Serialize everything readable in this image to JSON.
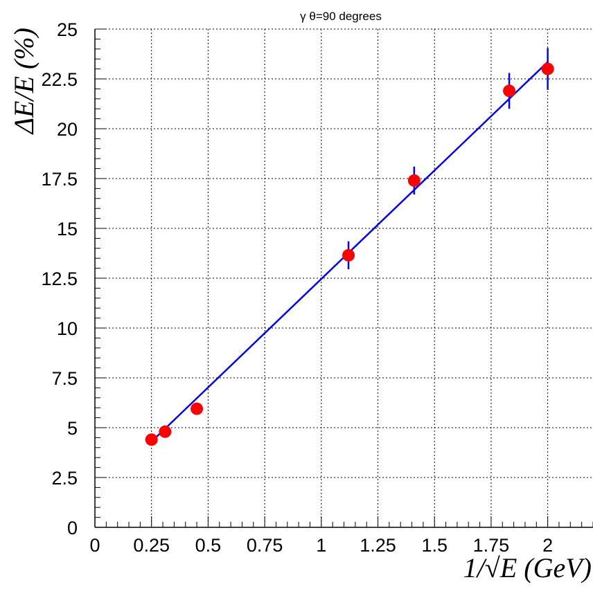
{
  "chart_data": {
    "type": "scatter",
    "title": "γ   θ=90 degrees",
    "xlabel": "1/√E (GeV)",
    "ylabel": "ΔE/E (%)",
    "xlim": [
      0,
      2.2
    ],
    "ylim": [
      0,
      25
    ],
    "x_ticks": [
      "0",
      "0.25",
      "0.5",
      "0.75",
      "1",
      "1.25",
      "1.5",
      "1.75",
      "2"
    ],
    "y_ticks": [
      "0",
      "2.5",
      "5",
      "7.5",
      "10",
      "12.5",
      "15",
      "17.5",
      "20",
      "22.5",
      "25"
    ],
    "grid": true,
    "series": [
      {
        "color": "#ff0000",
        "error_color": "#0000ff",
        "points": [
          {
            "x": 0.25,
            "y": 4.4,
            "err": 0.0
          },
          {
            "x": 0.31,
            "y": 4.8,
            "err": 0.0
          },
          {
            "x": 0.45,
            "y": 5.95,
            "err": 0.0
          },
          {
            "x": 1.12,
            "y": 13.65,
            "err": 0.7
          },
          {
            "x": 1.41,
            "y": 17.4,
            "err": 0.7
          },
          {
            "x": 1.83,
            "y": 21.9,
            "err": 0.9
          },
          {
            "x": 2.0,
            "y": 23.0,
            "err": 1.05
          }
        ]
      }
    ],
    "fit_line": {
      "color": "#0000ff",
      "x": [
        0.25,
        2.0
      ],
      "y": [
        4.3,
        23.35
      ]
    }
  }
}
